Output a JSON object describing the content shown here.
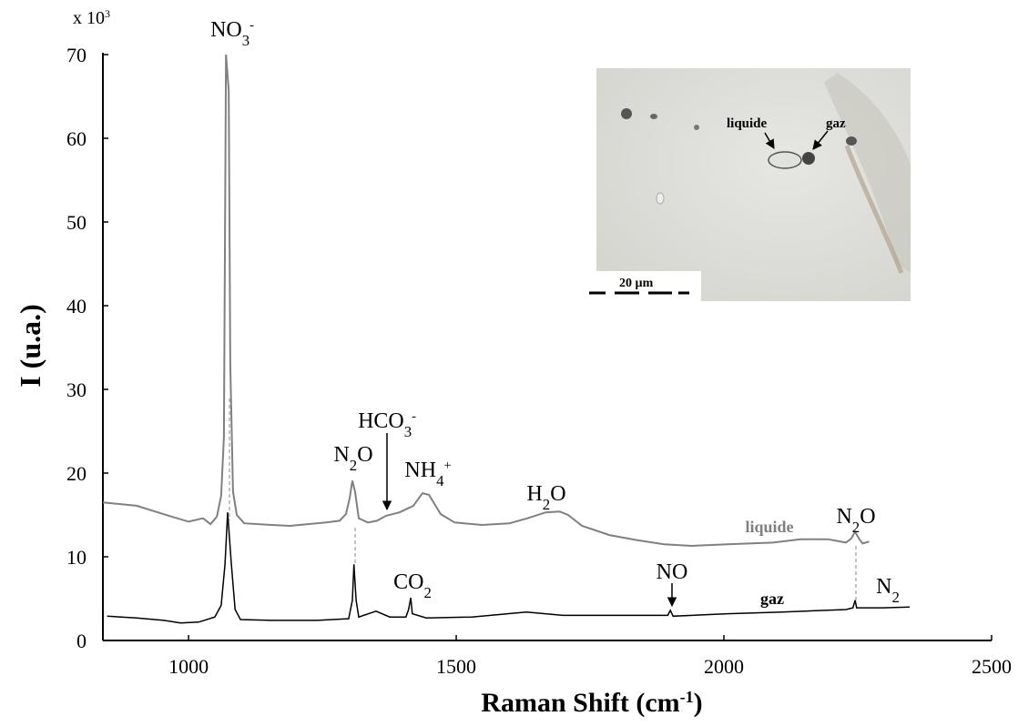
{
  "chart_data": {
    "type": "line",
    "y_multiplier": [
      {
        "text": "x 10"
      },
      {
        "sup": "3"
      }
    ],
    "y_label": [
      {
        "text": "I (u.a.)"
      }
    ],
    "x_label": [
      {
        "text": "Raman Shift (cm"
      },
      {
        "sup": "-1"
      },
      {
        "text": ")"
      }
    ],
    "xlim": [
      840,
      2500
    ],
    "xticks": [
      1000,
      1500,
      2000,
      2500
    ],
    "ylim": [
      0,
      70
    ],
    "yticks": [
      0,
      10,
      20,
      30,
      40,
      50,
      60,
      70
    ],
    "grid": false,
    "series": [
      {
        "name": "liquide",
        "color": "#808080",
        "x": [
          840,
          903,
          968,
          1000,
          1027,
          1041,
          1053,
          1061,
          1066,
          1070,
          1075,
          1078,
          1083,
          1090,
          1104,
          1155,
          1189,
          1223,
          1257,
          1282,
          1294,
          1301,
          1306,
          1311,
          1318,
          1335,
          1352,
          1369,
          1394,
          1420,
          1437,
          1449,
          1471,
          1497,
          1548,
          1599,
          1633,
          1667,
          1693,
          1709,
          1735,
          1786,
          1837,
          1888,
          1939,
          2007,
          2092,
          2143,
          2194,
          2228,
          2238,
          2245,
          2252,
          2259,
          2271
        ],
        "values": [
          16.5,
          16.1,
          14.8,
          14.2,
          14.6,
          13.9,
          14.8,
          17.3,
          24.3,
          70,
          65.7,
          33,
          17.8,
          15,
          14.0,
          13.8,
          13.7,
          13.9,
          14.1,
          14.3,
          15.1,
          17,
          19.1,
          17.8,
          14.6,
          14.1,
          14.3,
          14.9,
          15.3,
          16.1,
          17.6,
          17.4,
          15.1,
          14.1,
          13.8,
          14.0,
          14.6,
          15.3,
          15.4,
          15,
          13.7,
          12.6,
          12.0,
          11.5,
          11.3,
          11.5,
          11.7,
          12.1,
          12.1,
          11.7,
          12.2,
          13.0,
          12.2,
          11.6,
          11.8
        ]
      },
      {
        "name": "gaz",
        "color": "#000000",
        "x": [
          848,
          903,
          954,
          985,
          1019,
          1049,
          1061,
          1068,
          1073,
          1080,
          1087,
          1097,
          1155,
          1240,
          1299,
          1306,
          1309,
          1313,
          1318,
          1350,
          1376,
          1406,
          1411,
          1415,
          1418,
          1444,
          1529,
          1631,
          1699,
          1801,
          1895,
          1900,
          1905,
          2007,
          2109,
          2228,
          2241,
          2245,
          2248,
          2296,
          2347
        ],
        "values": [
          2.9,
          2.7,
          2.4,
          2.1,
          2.2,
          2.8,
          4.2,
          9.1,
          15.3,
          9.1,
          3.7,
          2.5,
          2.4,
          2.4,
          2.6,
          4.8,
          9.1,
          4.8,
          2.8,
          3.5,
          2.8,
          2.8,
          3.7,
          5.1,
          3.2,
          2.7,
          2.8,
          3.4,
          3.0,
          3.0,
          3.0,
          3.6,
          2.9,
          3.2,
          3.4,
          3.7,
          3.9,
          4.8,
          3.9,
          3.9,
          4.0
        ]
      }
    ],
    "annotations": [
      {
        "parts": [
          {
            "text": "NO"
          },
          {
            "sub": "3"
          },
          {
            "sup": "-"
          }
        ]
      },
      {
        "parts": [
          {
            "text": "HCO"
          },
          {
            "sub": "3"
          },
          {
            "sup": "-"
          }
        ]
      },
      {
        "parts": [
          {
            "text": "N"
          },
          {
            "sub": "2"
          },
          {
            "text": "O"
          }
        ]
      },
      {
        "parts": [
          {
            "text": "NH"
          },
          {
            "sub": "4"
          },
          {
            "sup": "+"
          }
        ]
      },
      {
        "parts": [
          {
            "text": "H"
          },
          {
            "sub": "2"
          },
          {
            "text": "O"
          }
        ]
      },
      {
        "parts": [
          {
            "text": "N"
          },
          {
            "sub": "2"
          },
          {
            "text": "O"
          }
        ]
      },
      {
        "parts": [
          {
            "text": "CO"
          },
          {
            "sub": "2"
          }
        ]
      },
      {
        "parts": [
          {
            "text": "NO"
          }
        ]
      },
      {
        "parts": [
          {
            "text": "N"
          },
          {
            "sub": "2"
          }
        ]
      }
    ],
    "inset": {
      "labels": [
        "liquide",
        "gaz"
      ],
      "scale_bar": "20 µm"
    }
  }
}
